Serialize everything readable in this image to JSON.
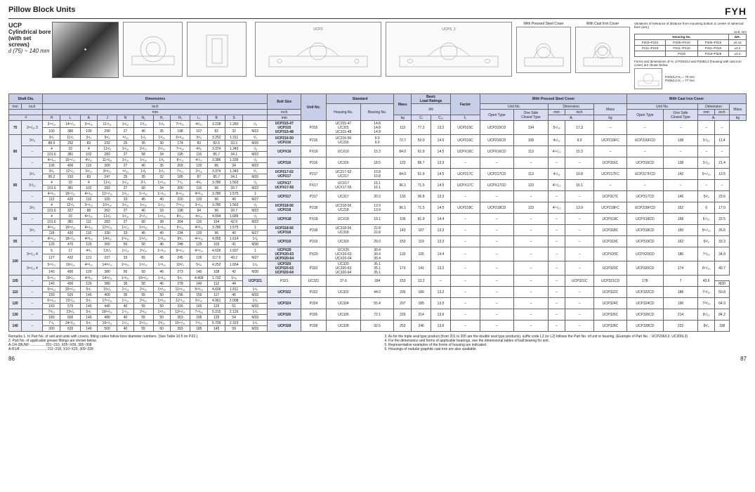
{
  "header": {
    "title": "Pillow Block Units",
    "brand": "FYH"
  },
  "subtitle": {
    "ucp": "UCP",
    "desc": "Cylindrical bore (with set screws)",
    "range_symbol": "d",
    "range": " (75) ~ 140 mm"
  },
  "diagram_labels": {
    "ucp2": "UCP2",
    "ucpx3": "UCPX, 3",
    "pressed": "With Pressed Steel Cover",
    "cast": "With Cast Iron Cover"
  },
  "notes": {
    "tolerance_title": "Variations of tolerance of distance from mounting bottom to center of spherical bore (ΔH₁)",
    "unit": "Unit: mm",
    "housing_hdr": "Housing No.",
    "delta_hdr": "ΔH₁",
    "tol_rows": [
      [
        "P203~P210",
        "PX05~PX10",
        "P305~P310",
        "±0.15"
      ],
      [
        "P211~P218",
        "PX11~PX18",
        "P311~P318",
        "±0.2"
      ],
      [
        "",
        "PX20",
        "P319~P328",
        "±0.3"
      ]
    ],
    "forms_note": "Forms and dimensions of H₂ of P204/L3 and P205/L3 (housing with cast iron cover) are shown below.",
    "p204": "P204/L3 H₂ = 70 mm",
    "p205": "P205/L3 H₂ = 77 mm"
  },
  "table_headers": {
    "shaft": "Shaft Dia.",
    "dims": "Dimensions",
    "bolt": "Bolt Size",
    "unit_no": "Unit No.",
    "standard": "Standard",
    "housing": "Housing No.",
    "bearing": "Bearing No.",
    "mass": "Mass",
    "load": "Basic Load Ratings",
    "factor": "Factor",
    "pressed": "With Pressed Steel Cover",
    "cast": "With Cast Iron Cover",
    "open": "Open Type",
    "closed": "One Side Closed Type",
    "dimension": "Dimension",
    "mm": "mm",
    "inch": "inch",
    "kg": "kg",
    "kn": "kN",
    "d": "d",
    "H": "H",
    "L": "L",
    "A": "A",
    "J": "J",
    "N": "N",
    "N1": "N₁",
    "H1": "H₁",
    "H2": "H₂",
    "L1": "L₁",
    "B": "B",
    "S": "S",
    "Cr": "Cᵣ",
    "Cor": "C₀ᵣ",
    "f0": "f₀",
    "Aw": "Aᵢ"
  },
  "shaft_sizes": [
    "75",
    "80",
    "85",
    "90",
    "95",
    "100",
    "105",
    "110",
    "120",
    "130",
    "140"
  ],
  "rows": [
    {
      "d": "75",
      "inch": "2¹⁵/₁₆\n3",
      "mm": [
        "3¹⁵/₁₆",
        "14¹⁵/₁₆",
        "3¹⁵/₁₆",
        "11⁷/₁₆",
        "1¹/₁₆",
        "1³/₁₆",
        "1¹/₈",
        "7²⁵/₃₂",
        "4¹/₃₂",
        "3.228",
        "1.260",
        "⁷/₈"
      ],
      "mm2": [
        "100",
        "380",
        "100",
        "290",
        "27",
        "40",
        "35",
        "198",
        "107",
        "82",
        "32",
        "M22"
      ],
      "units": [
        "UCP315-47",
        "UCP315",
        "UCP315-48"
      ],
      "housing": "P315",
      "bearings": [
        "UC315-47",
        "UC315",
        "UC315-48"
      ],
      "mass": [
        "14.8",
        "14.8",
        "14.8"
      ],
      "cr": "113",
      "cor": "77.2",
      "f0": "13.2",
      "pressed_open": "UCP315C",
      "pressed_closed": "UCP315CD",
      "p_dim": "134",
      "p_inch": "5⁹/₃₂",
      "p_mass": "17.3",
      "cast_open": "–",
      "cast_closed": "–",
      "c_dim": "–",
      "c_mass": "–"
    },
    {
      "d": "80",
      "inch": "3¹/₈",
      "mm": [
        "3¹/₂",
        "11¹/₂",
        "3¹/₄",
        "9¹/₈",
        "³¹/₃₂",
        "1¹/₈",
        "1³/₁₆",
        "6¹³/₁₆",
        "3¹/₄",
        "3.252",
        "1.311",
        "³/₄"
      ],
      "mm2": [
        "88.9",
        "292",
        "83",
        "232",
        "25",
        "35",
        "30",
        "174",
        "83",
        "82.6",
        "33.3",
        "M20"
      ],
      "units": [
        "UCP216-50",
        "UCP216"
      ],
      "housing": "P216",
      "bearings": [
        "UC216-50",
        "UC216"
      ],
      "mass": [
        "9.0",
        "9.0"
      ],
      "cr": "72.7",
      "cor": "53.0",
      "f0": "14.6",
      "pressed_open": "UCP216C",
      "pressed_closed": "UCP216CD",
      "p_dim": "109",
      "p_inch": "4⁹/₃₂",
      "p_mass": "9.0",
      "cast_open": "UCP216FC",
      "cast_closed": "UCP216FCD",
      "c_dim": "138",
      "c_inch": "5⁷/₁₆",
      "c_mass": "11.4"
    },
    {
      "d": "80b",
      "inch": "–",
      "mm": [
        "4",
        "15",
        "4",
        "11¹/₈",
        "1¹/₁₆",
        "2⁹/₃₂",
        "2⁹/₃₂",
        "7¹¹/₁₆",
        "4¹/₈",
        "3.374",
        "1.343",
        "⁷/₈"
      ],
      "mm2": [
        "101.6",
        "381",
        "102",
        "283",
        "27",
        "58",
        "34",
        "195",
        "116",
        "85.7",
        "34.1",
        "M22"
      ],
      "units": [
        "UCPX16"
      ],
      "housing": "PX16",
      "bearings": [
        "UCX16"
      ],
      "mass": [
        "15.3"
      ],
      "cr": "84.0",
      "cor": "61.9",
      "f0": "14.5",
      "pressed_open": "UCPX16C",
      "pressed_closed": "UCPX16CD",
      "p_dim": "113",
      "p_inch": "4¹⁵/₃₂",
      "p_mass": "15.3",
      "cast_open": "–",
      "cast_closed": "–",
      "c_dim": "–",
      "c_mass": "–"
    },
    {
      "d": "80c",
      "inch": "–",
      "mm": [
        "4¹¹/₆₄",
        "16¹⁵/₃₂",
        "4⁵/₁₆",
        "11¹³/₁₆",
        "1¹/₁₆",
        "1⁹/₁₆",
        "1³/₈",
        "8⁷/₃₂",
        "4⁷/₃₂",
        "3.386",
        "1.339",
        "⁷/₈"
      ],
      "mm2": [
        "106",
        "400",
        "110",
        "300",
        "27",
        "40",
        "35",
        "209",
        "120",
        "86",
        "34",
        "M22"
      ],
      "units": [
        "UCP316"
      ],
      "housing": "P316",
      "bearings": [
        "UC316"
      ],
      "mass": [
        "18.5"
      ],
      "cr": "123",
      "cor": "86.7",
      "f0": "13.3",
      "cast_open": "UCP316C",
      "cast_closed": "UCP316CD",
      "c_dim": "138",
      "c_inch": "5⁷/₁₆",
      "c_mass": "21.4"
    },
    {
      "d": "85",
      "inch": "3¹/₄",
      "mm": [
        "3³/₄",
        "12⁷/₃₂",
        "3⁹/₃₂",
        "9²³/₃₂",
        "³¹/₃₂",
        "1³/₈",
        "1¹/₄",
        "7¹/₃₂",
        "3⁷/₁₆",
        "3.374",
        "1.343",
        "³/₄"
      ],
      "mm2": [
        "95.2",
        "310",
        "83",
        "247",
        "25",
        "35",
        "32",
        "185",
        "87",
        "85.7",
        "34.1",
        "M20"
      ],
      "units": [
        "UCP217-52",
        "UCP217"
      ],
      "housing": "P217",
      "bearings": [
        "UC217-52",
        "UC217"
      ],
      "mass": [
        "10.8",
        "10.8"
      ],
      "cr": "84.0",
      "cor": "61.9",
      "f0": "14.5",
      "pressed_open": "UCP217C",
      "pressed_closed": "UCP217CD",
      "p_dim": "113",
      "p_inch": "4⁷/₁₆",
      "p_mass": "10.8",
      "cast_open": "UCP217FC",
      "cast_closed": "UCP217FCD",
      "c_dim": "142",
      "c_inch": "5¹⁹/₃₂",
      "c_mass": "13.5"
    },
    {
      "d": "85b",
      "inch": "3⁷/₁₆",
      "mm": [
        "4",
        "15",
        "4",
        "11¹/₈",
        "1¹/₁₆",
        "2¹/₂",
        "1¹¹/₃₂",
        "7⁷/₈",
        "4³/₈",
        "3.780",
        "1.563",
        "⁷/₈"
      ],
      "mm2": [
        "101.6",
        "381",
        "102",
        "283",
        "27",
        "60",
        "34",
        "200",
        "116",
        "96",
        "39.7",
        "M22"
      ],
      "units": [
        "UCPX17",
        "UCPX17-55"
      ],
      "housing": "PX17",
      "bearings": [
        "UCX17",
        "UCX17-55"
      ],
      "mass": [
        "16.1",
        "16.1"
      ],
      "cr": "96.1",
      "cor": "71.5",
      "f0": "14.5",
      "pressed_open": "UCPX17C",
      "pressed_closed": "UCPX17CD",
      "p_dim": "123",
      "p_inch": "4²⁷/₃₂",
      "p_mass": "16.1"
    },
    {
      "d": "85c",
      "inch": "–",
      "mm": [
        "4¹³/₃₂",
        "16¹⁷/₃₂",
        "4¹¹/₃₂",
        "12¹⁹/₃₂",
        "1¹/₃₂",
        "1¹⁹/₃₂",
        "1¹⁹/₃₂",
        "8¹⁹/₃₂",
        "4²³/₃₂",
        "3.780",
        "1.575",
        "1"
      ],
      "mm2": [
        "112",
        "420",
        "110",
        "320",
        "33",
        "45",
        "40",
        "220",
        "120",
        "96",
        "40",
        "M27"
      ],
      "units": [
        "UCP317"
      ],
      "housing": "P317",
      "bearings": [
        "UC317"
      ],
      "mass": [
        "20.3"
      ],
      "cr": "133",
      "cor": "96.8",
      "f0": "13.3",
      "cast_open": "UCP317C",
      "cast_closed": "UCP317CD",
      "c_dim": "146",
      "c_inch": "5³/₄",
      "c_mass": "23.6"
    },
    {
      "d": "90",
      "inch": "3¹/₂",
      "mm": [
        "4",
        "12⁷/₈",
        "3¹⁵/₃₂",
        "10⁵/₁₆",
        "1¹/₁₆",
        "1⁹/₁₆",
        "1⁹/₃₂",
        "7²⁵/₃₂",
        "3¹¹/₁₆",
        "3.780",
        "1.563",
        "⁷/₈"
      ],
      "mm2": [
        "101.6",
        "327",
        "88",
        "262",
        "27",
        "40",
        "33",
        "198",
        "94",
        "96",
        "39.7",
        "M22"
      ],
      "units": [
        "UCP218-56",
        "UCP218"
      ],
      "housing": "P218",
      "bearings": [
        "UC218-56",
        "UC218"
      ],
      "mass": [
        "13.9",
        "13.9"
      ],
      "cr": "96.1",
      "cor": "71.5",
      "f0": "14.5",
      "pressed_open": "UCP218C",
      "pressed_closed": "UCP218CD",
      "p_dim": "123",
      "p_inch": "4²⁷/₃₂",
      "p_mass": "13.9",
      "cast_open": "UCP218FC",
      "cast_closed": "UCP218FCD",
      "c_dim": "152",
      "c_inch": "6",
      "c_mass": "17.0"
    },
    {
      "d": "90b",
      "inch": "–",
      "mm": [
        "4",
        "15",
        "4¹¹/₃₂",
        "11¹/₈",
        "1¹/₁₆",
        "2¹¹/₃₂",
        "1¹¹/₃₂",
        "8¹/₃₂",
        "4⁹/₁₆",
        "4.094",
        "1.689",
        "⁷/₈"
      ],
      "mm2": [
        "101.6",
        "381",
        "111",
        "283",
        "27",
        "60",
        "38",
        "204",
        "116",
        "104",
        "42.9",
        "M22"
      ],
      "units": [
        "UCPX18"
      ],
      "housing": "PX18",
      "bearings": [
        "UCX18"
      ],
      "mass": [
        "19.1"
      ],
      "cr": "109",
      "cor": "81.9",
      "f0": "14.4",
      "cast_open": "UCPX18C",
      "cast_closed": "UCPX18CD",
      "c_dim": "158",
      "c_inch": "6⁷/₃₂",
      "c_mass": "22.5"
    },
    {
      "d": "90c",
      "inch": "3¹/₂",
      "mm": [
        "4²¹/₃₂",
        "16¹⁵/₁₆",
        "4¹¹/₃₂",
        "12³¹/₃₂",
        "1⁹/₃₂",
        "1²⁵/₃₂",
        "1¹⁹/₃₂",
        "9⁷/₃₂",
        "4²³/₃₂",
        "3.780",
        "1.575",
        "1"
      ],
      "mm2": [
        "118",
        "430",
        "110",
        "330",
        "33",
        "45",
        "40",
        "234",
        "120",
        "96",
        "40",
        "M27"
      ],
      "units": [
        "UCP318-56",
        "UCP318"
      ],
      "housing": "P318",
      "bearings": [
        "UC318-56",
        "UC318"
      ],
      "mass": [
        "22.8",
        "22.8"
      ],
      "cr": "143",
      "cor": "107",
      "f0": "13.3",
      "cast_open": "UCP318C",
      "cast_closed": "UCP318CD",
      "c_dim": "150",
      "c_inch": "5²⁹/₃₂",
      "c_mass": "26.6"
    },
    {
      "d": "95",
      "inch": "–",
      "mm": [
        "4²⁹/₃₂",
        "18¹⁷/₃₂",
        "4²³/₃₂",
        "14³/₁₆",
        "1³¹/₃₂",
        "1³¹/₃₂",
        "1¹³/₁₆",
        "9³/₄",
        "4²⁹/₃₂",
        "4.055",
        "1.614",
        "1¹/₈"
      ],
      "mm2": [
        "125",
        "470",
        "120",
        "360",
        "50",
        "50",
        "46",
        "248",
        "125",
        "103",
        "41",
        "M30"
      ],
      "units": [
        "UCP319"
      ],
      "housing": "P319",
      "bearings": [
        "UC319"
      ],
      "mass": [
        "29.0"
      ],
      "cr": "153",
      "cor": "119",
      "f0": "13.3",
      "cast_open": "UCP319C",
      "cast_closed": "UCP319CD",
      "c_dim": "162",
      "c_inch": "6³/₈",
      "c_mass": "33.3"
    },
    {
      "d": "100",
      "inch": "3¹⁵/₁₆\n4",
      "mm": [
        "5",
        "17",
        "4³/₄",
        "13¹/₄",
        "1⁵/₁₆",
        "2⁹/₁₆",
        "1¹⁹/₃₂",
        "9²⁹/₃₂",
        "4¹⁵/₁₆",
        "4.626",
        "1.937",
        "1"
      ],
      "mm2": [
        "127",
        "432",
        "121",
        "337",
        "33",
        "65",
        "45",
        "245",
        "126",
        "117.5",
        "49.2",
        "M27"
      ],
      "units": [
        "UCPX20",
        "UCPX20-63",
        "UCPX20-64"
      ],
      "housing": "PX20",
      "bearings": [
        "UCX20",
        "UCX20-63",
        "UCX20-64"
      ],
      "mass": [
        "30.4",
        "30.4",
        "30.4"
      ],
      "cr": "133",
      "cor": "105",
      "f0": "14.4",
      "cast_open": "UCPX20C",
      "cast_closed": "UCPX20CD",
      "c_dim": "186",
      "c_inch": "7⁵/₁₆",
      "c_mass": "34.9"
    },
    {
      "d": "100b",
      "inch": "3¹⁵/₁₆\n4",
      "mm": [
        "5¹⁵/₃₂",
        "19⁵/₁₆",
        "4²³/₃₂",
        "14³³/₃₂",
        "1³¹/₃₂",
        "1³¹/₃₂",
        "1¹³/₁₆",
        "10³/₄",
        "5¹/₈",
        "4.252",
        "1.654",
        "1¹/₈"
      ],
      "mm2": [
        "140",
        "490",
        "120",
        "380",
        "50",
        "50",
        "46",
        "273",
        "140",
        "108",
        "42",
        "M30"
      ],
      "units": [
        "UCP320",
        "UCP320-63",
        "UCP320-64"
      ],
      "housing": "P320",
      "bearings": [
        "UC320",
        "UC320-63",
        "UC320-64"
      ],
      "mass": [
        "35.1",
        "35.1",
        "35.1"
      ],
      "cr": "173",
      "cor": "141",
      "f0": "13.2",
      "cast_open": "UCP320C",
      "cast_closed": "UCP320CD",
      "c_dim": "174",
      "c_inch": "6²⁷/₃₂",
      "c_mass": "40.7"
    },
    {
      "d": "105",
      "inch": "–",
      "mm": [
        "5¹⁵/₃₂",
        "19⁵/₁₆",
        "4²³/₃₂",
        "14³¹/₃₂",
        "1¹³/₃₂",
        "10¹⁵/₁₆",
        "1¹³/₁₆",
        "5¹/₂",
        "4.409",
        "1.732",
        "1¹/₈"
      ],
      "mm2": [
        "140",
        "490",
        "120",
        "380",
        "36",
        "50",
        "46",
        "278",
        "140",
        "112",
        "44",
        "M30"
      ],
      "units": [
        "UCP321"
      ],
      "housing": "P321",
      "bearings": [
        "UC321"
      ],
      "mass": [
        "37.6"
      ],
      "cr": "184",
      "cor": "153",
      "f0": "13.2",
      "cast_open": "UCP321C",
      "cast_closed": "UCP321CD",
      "c_dim": "178",
      "c_inch": "7",
      "c_mass": "43.6"
    },
    {
      "d": "110",
      "inch": "–",
      "mm": [
        "5²⁹/₃₂",
        "20¹⁵/₃₂",
        "5¹/₂",
        "15¹/₈",
        "1⁵/₁₆",
        "2⁵/₃₂",
        "1³¹/₃₂",
        "11²¹/₃₂",
        "5²³/₃₂",
        "4.606",
        "1.811",
        "1¹/₄"
      ],
      "mm2": [
        "150",
        "520",
        "140",
        "400",
        "35",
        "55",
        "50",
        "296",
        "150",
        "117",
        "46",
        "M33"
      ],
      "units": [
        "UCP322"
      ],
      "housing": "P322",
      "bearings": [
        "UC322"
      ],
      "mass": [
        "44.0"
      ],
      "cr": "205",
      "cor": "180",
      "f0": "13.2",
      "cast_open": "UCP322C",
      "cast_closed": "UCP322CD",
      "c_dim": "188",
      "c_inch": "7¹³/₃₂",
      "c_mass": "50.8"
    },
    {
      "d": "120",
      "inch": "–",
      "mm": [
        "6¹⁹/₆₄",
        "22⁷/₁₆",
        "5¹/₂",
        "17¹¹/₃₂",
        "1⁷/₃₂",
        "2⁵/₃₂",
        "1³¹/₃₂",
        "12⁷/₁₆",
        "6⁵/₁₆",
        "4.961",
        "2.008",
        "1¹/₄"
      ],
      "mm2": [
        "160",
        "570",
        "140",
        "440",
        "40",
        "55",
        "50",
        "316",
        "160",
        "126",
        "51",
        "M33"
      ],
      "units": [
        "UCP324"
      ],
      "housing": "P324",
      "bearings": [
        "UC324"
      ],
      "mass": [
        "55.4"
      ],
      "cr": "207",
      "cor": "185",
      "f0": "13.5",
      "cast_open": "UCP324C",
      "cast_closed": "UCP324CD",
      "c_dim": "196",
      "c_inch": "7²³/₃₂",
      "c_mass": "64.9"
    },
    {
      "d": "130",
      "inch": "–",
      "mm": [
        "7³/₃₂",
        "23⁵/₈",
        "5¹/₂",
        "18²⁹/₃₂",
        "1⁷/₃₂",
        "2⁵/₃₂",
        "1³¹/₃₂",
        "13²⁹/₃₂",
        "7¹¹/₁₆",
        "5.315",
        "2.126",
        "1¹/₄"
      ],
      "mm2": [
        "180",
        "600",
        "140",
        "480",
        "40",
        "55",
        "50",
        "353",
        "195",
        "135",
        "54",
        "M33"
      ],
      "units": [
        "UCP326"
      ],
      "housing": "P326",
      "bearings": [
        "UC326"
      ],
      "mass": [
        "72.1"
      ],
      "cr": "229",
      "cor": "214",
      "f0": "13.6",
      "cast_open": "UCP326C",
      "cast_closed": "UCP326CD",
      "c_dim": "214",
      "c_inch": "8⁷/₁₆",
      "c_mass": "84.2"
    },
    {
      "d": "140",
      "inch": "–",
      "mm": [
        "7⁷/₈",
        "24¹³/₃₂",
        "5¹/₂",
        "19¹¹/₁₆",
        "1⁹/₁₆",
        "2¹¹/₆₄",
        "2³/₃₂",
        "15¹⁵/₃₂",
        "7⁹/₃₂",
        "5.709",
        "2.323",
        "1¹/₄"
      ],
      "mm2": [
        "200",
        "620",
        "140",
        "500",
        "40",
        "55",
        "60",
        "393",
        "185",
        "145",
        "59",
        "M33"
      ],
      "units": [
        "UCP328"
      ],
      "housing": "P328",
      "bearings": [
        "UC328"
      ],
      "mass": [
        "92.5"
      ],
      "cr": "253",
      "cor": "246",
      "f0": "13.6",
      "cast_open": "UCP328C",
      "cast_closed": "UCP328CD",
      "c_dim": "222",
      "c_inch": "8³/₄",
      "c_mass": "108"
    }
  ],
  "remarks": {
    "left": [
      "1. In Part No. of unit and units with covers, fitting codes follow bore diameter numbers. (See Table 10.5 on P.62.)",
      "2. Part No. of applicable grease fittings are shown below.",
      "   A-1/4-28UNF ............... 201~210, X05~X09, 305~308",
      "   A-R1/8 ........................... 211~218, X10~X20, 309~328"
    ],
    "right": [
      "3. As for the triple seal type product (from 201 to 205 are the double seal type products), suffix code L3 (or L2) follows the Part No. of unit or bearing. (Example of Part No. : UCP206/L3, UC206L3)",
      "4. For the dimensions and forms of applicable bearings, see the dimensional tables of ball bearing for unit.",
      "5. Representative examples of the forms of housing are indicated.",
      "6. Housings of nodular graphite cast iron are also available."
    ]
  },
  "page_left": "86",
  "page_right": "87"
}
